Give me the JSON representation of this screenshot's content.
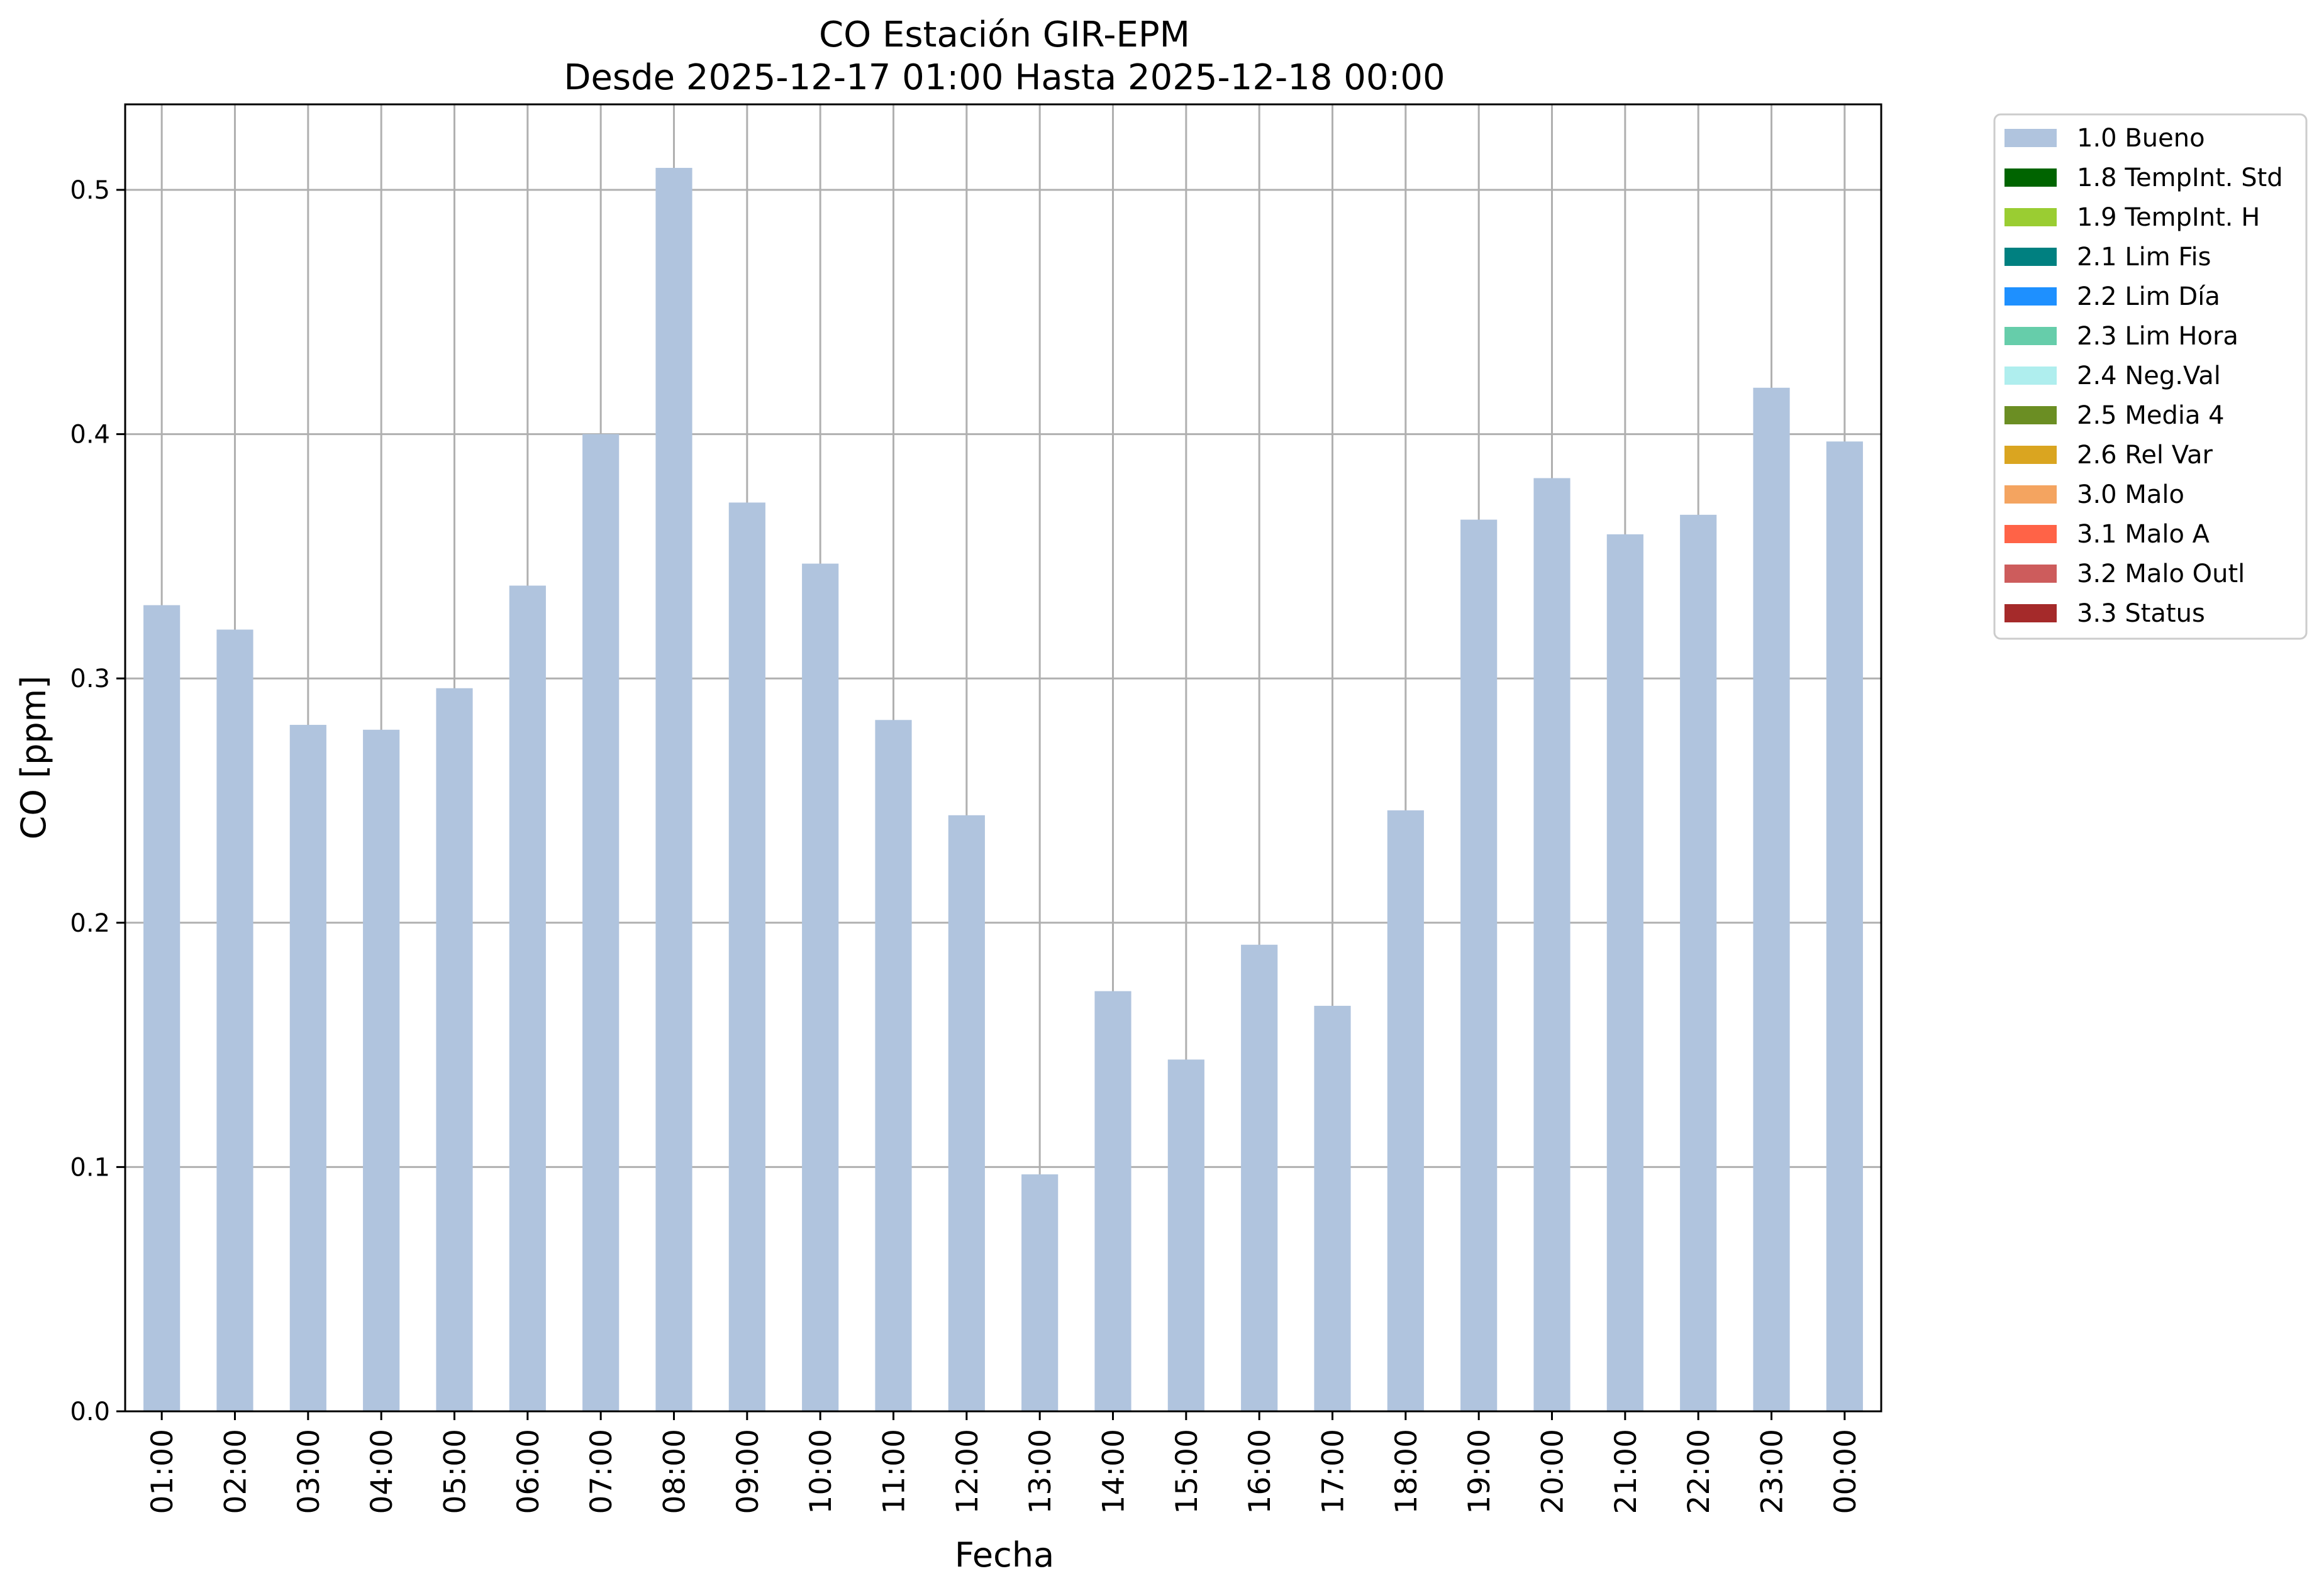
{
  "chart_data": {
    "type": "bar",
    "title": "CO Estación GIR-EPM",
    "subtitle": "Desde 2025-12-17 01:00 Hasta 2025-12-18 00:00",
    "xlabel": "Fecha",
    "ylabel": "CO [ppm]",
    "ylim": [
      0,
      0.535
    ],
    "yticks": [
      "0.0",
      "0.1",
      "0.2",
      "0.3",
      "0.4",
      "0.5"
    ],
    "grid": true,
    "legend_position": "outside-right-top",
    "categories": [
      "01:00",
      "02:00",
      "03:00",
      "04:00",
      "05:00",
      "06:00",
      "07:00",
      "08:00",
      "09:00",
      "10:00",
      "11:00",
      "12:00",
      "13:00",
      "14:00",
      "15:00",
      "16:00",
      "17:00",
      "18:00",
      "19:00",
      "20:00",
      "21:00",
      "22:00",
      "23:00",
      "00:00"
    ],
    "series": [
      {
        "name": "1.0 Bueno",
        "color": "#b0c4de",
        "values": [
          0.33,
          0.32,
          0.281,
          0.279,
          0.296,
          0.338,
          0.4,
          0.509,
          0.372,
          0.347,
          0.283,
          0.244,
          0.097,
          0.172,
          0.144,
          0.191,
          0.166,
          0.246,
          0.365,
          0.382,
          0.359,
          0.367,
          0.419,
          0.397
        ]
      }
    ],
    "legend": [
      {
        "label": "1.0 Bueno",
        "color": "#b0c4de"
      },
      {
        "label": "1.8 TempInt. Std",
        "color": "#006400"
      },
      {
        "label": "1.9 TempInt. H",
        "color": "#9acd32"
      },
      {
        "label": "2.1 Lim Fis",
        "color": "#008080"
      },
      {
        "label": "2.2 Lim Día",
        "color": "#1e90ff"
      },
      {
        "label": "2.3 Lim Hora",
        "color": "#66cdaa"
      },
      {
        "label": "2.4 Neg.Val",
        "color": "#afeeee"
      },
      {
        "label": "2.5 Media 4",
        "color": "#6b8e23"
      },
      {
        "label": "2.6 Rel Var",
        "color": "#daa520"
      },
      {
        "label": "3.0 Malo",
        "color": "#f4a460"
      },
      {
        "label": "3.1 Malo A",
        "color": "#ff6347"
      },
      {
        "label": "3.2 Malo Outl",
        "color": "#cd5c5c"
      },
      {
        "label": "3.3 Status",
        "color": "#a52a2a"
      }
    ]
  }
}
